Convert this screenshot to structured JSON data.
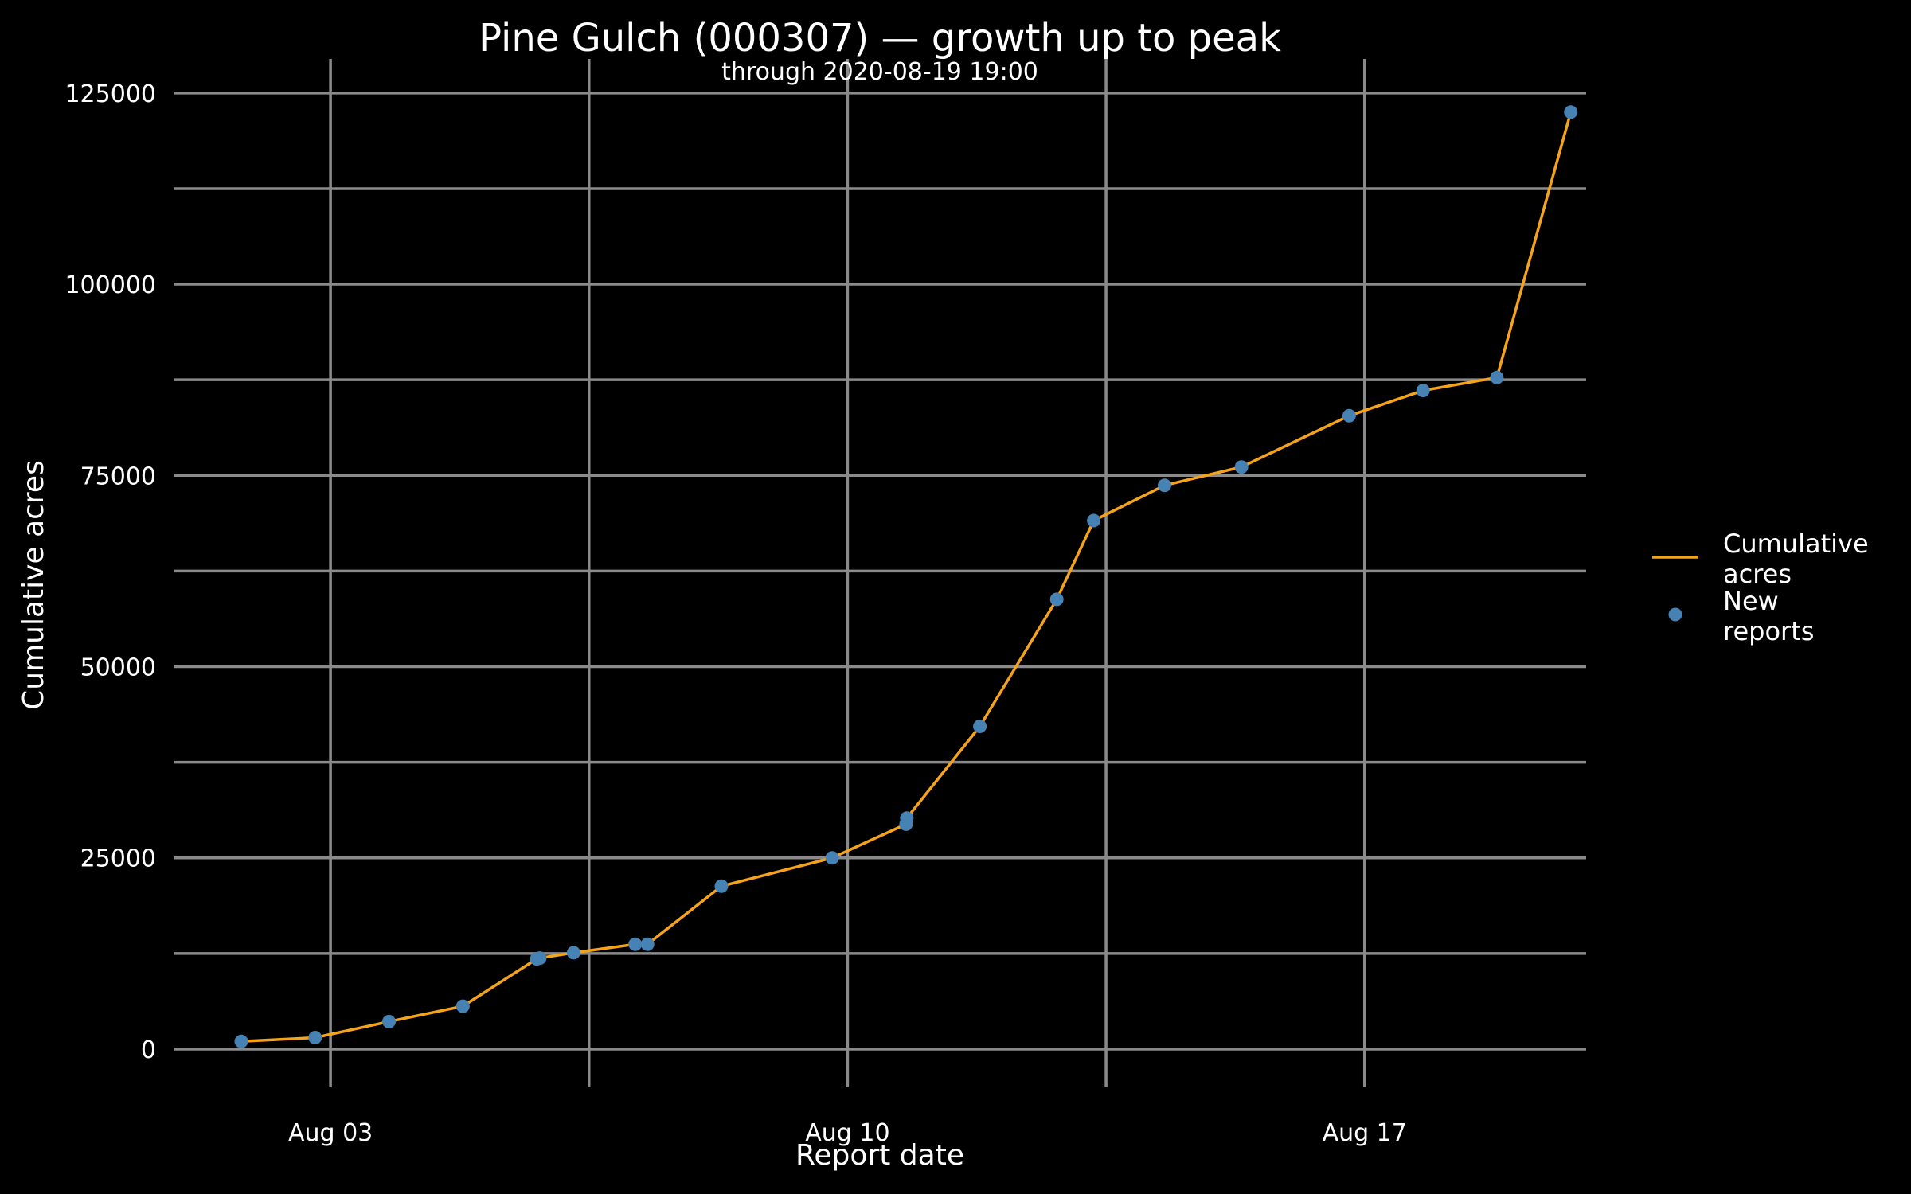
{
  "chart_data": {
    "type": "line",
    "title": "Pine Gulch (000307) — growth up to peak",
    "subtitle": "through 2020-08-19 19:00",
    "xlabel": "Report date",
    "ylabel": "Cumulative acres",
    "x_ticks": [
      {
        "date": "2020-08-03",
        "label": "Aug 03"
      },
      {
        "date": "2020-08-10",
        "label": "Aug 10"
      },
      {
        "date": "2020-08-17",
        "label": "Aug 17"
      }
    ],
    "xlim": [
      "2020-07-31T21:00",
      "2020-08-20T00:00"
    ],
    "ylim": [
      -5000,
      128000
    ],
    "y_ticks": [
      0,
      25000,
      50000,
      75000,
      100000,
      125000
    ],
    "grid": true,
    "legend_position": "right",
    "colors": {
      "background": "#000000",
      "grid": "#8a8a8a",
      "line": "#f5a31a",
      "points": "#4682b4",
      "text": "#ffffff"
    },
    "series": [
      {
        "name": "Cumulative\nacres",
        "kind": "line",
        "points": [
          {
            "x": "2020-08-01T19:00",
            "y": 1000
          },
          {
            "x": "2020-08-02T19:00",
            "y": 1500
          },
          {
            "x": "2020-08-03T19:00",
            "y": 3600
          },
          {
            "x": "2020-08-04T19:00",
            "y": 5600
          },
          {
            "x": "2020-08-05T19:00",
            "y": 11800
          },
          {
            "x": "2020-08-05T20:00",
            "y": 11900
          },
          {
            "x": "2020-08-06T07:00",
            "y": 12600
          },
          {
            "x": "2020-08-07T03:00",
            "y": 13700
          },
          {
            "x": "2020-08-07T07:00",
            "y": 13700
          },
          {
            "x": "2020-08-08T07:00",
            "y": 21300
          },
          {
            "x": "2020-08-09T19:00",
            "y": 25000
          },
          {
            "x": "2020-08-10T19:00",
            "y": 29400
          },
          {
            "x": "2020-08-10T19:15",
            "y": 30200
          },
          {
            "x": "2020-08-11T19:00",
            "y": 42200
          },
          {
            "x": "2020-08-12T20:00",
            "y": 58800
          },
          {
            "x": "2020-08-13T08:00",
            "y": 69100
          },
          {
            "x": "2020-08-14T07:00",
            "y": 73700
          },
          {
            "x": "2020-08-15T08:00",
            "y": 76100
          },
          {
            "x": "2020-08-16T19:00",
            "y": 82800
          },
          {
            "x": "2020-08-17T19:00",
            "y": 86100
          },
          {
            "x": "2020-08-18T19:00",
            "y": 87800
          },
          {
            "x": "2020-08-19T19:00",
            "y": 122500
          }
        ]
      },
      {
        "name": "New\nreports",
        "kind": "points",
        "same_as": "Cumulative\nacres"
      }
    ]
  }
}
